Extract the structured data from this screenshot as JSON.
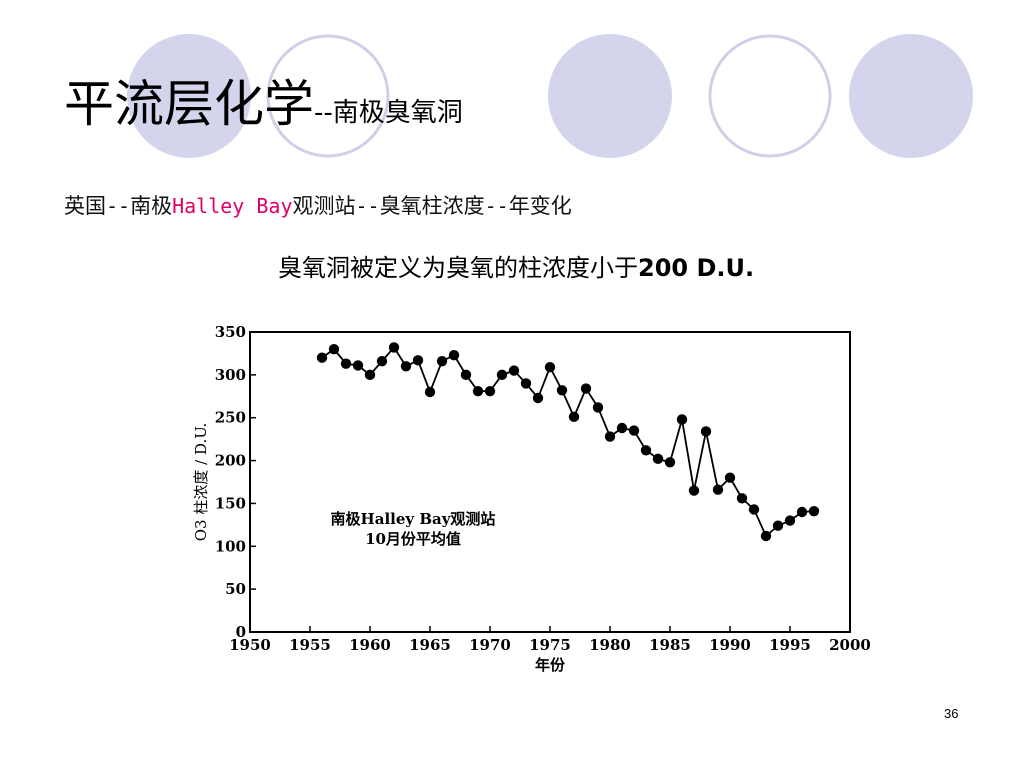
{
  "slide": {
    "title_main": "平流层化学",
    "title_sub": "--南极臭氧洞",
    "subtitle_prefix": "英国",
    "subtitle_sep1": "--",
    "subtitle_region": "南极",
    "subtitle_station": "Halley Bay",
    "subtitle_after_station": "观测站",
    "subtitle_sep2": "--",
    "subtitle_measure": "臭氧柱浓度",
    "subtitle_sep3": "--",
    "subtitle_trend": "年变化",
    "definition_text": "臭氧洞被定义为臭氧的柱浓度小于",
    "definition_value": "200 D.U.",
    "page_number": "36",
    "colors": {
      "circle_fill": "#d4d4ec",
      "circle_ring": "#cfd0e8",
      "station_text": "#e0006a"
    }
  },
  "chart_data": {
    "type": "line",
    "xlabel": "年份",
    "ylabel": "O3 柱浓度 / D.U.",
    "annotation_line1": "南极Halley Bay观测站",
    "annotation_line2": "10月份平均值",
    "xlim": [
      1950,
      2000
    ],
    "ylim": [
      0,
      350
    ],
    "xticks": [
      "1950",
      "1955",
      "1960",
      "1965",
      "1970",
      "1975",
      "1980",
      "1985",
      "1990",
      "1995",
      "2000"
    ],
    "yticks": [
      "0",
      "50",
      "100",
      "150",
      "200",
      "250",
      "300",
      "350"
    ],
    "grid": false,
    "series": [
      {
        "x": [
          1956,
          1957,
          1958,
          1959,
          1960,
          1961,
          1962,
          1963,
          1964,
          1965,
          1966,
          1967,
          1968,
          1969,
          1970,
          1971,
          1972,
          1973,
          1974,
          1975,
          1976,
          1977,
          1978,
          1979,
          1980,
          1981,
          1982,
          1983,
          1984,
          1985,
          1986,
          1987,
          1988,
          1989,
          1990,
          1991,
          1992,
          1993,
          1994,
          1995,
          1996,
          1997
        ],
        "values": [
          320,
          330,
          313,
          311,
          300,
          316,
          332,
          310,
          317,
          280,
          316,
          323,
          300,
          281,
          281,
          300,
          305,
          290,
          273,
          309,
          282,
          251,
          284,
          262,
          228,
          238,
          235,
          212,
          202,
          198,
          248,
          165,
          234,
          166,
          180,
          156,
          143,
          112,
          124,
          130,
          140,
          141
        ]
      }
    ]
  }
}
